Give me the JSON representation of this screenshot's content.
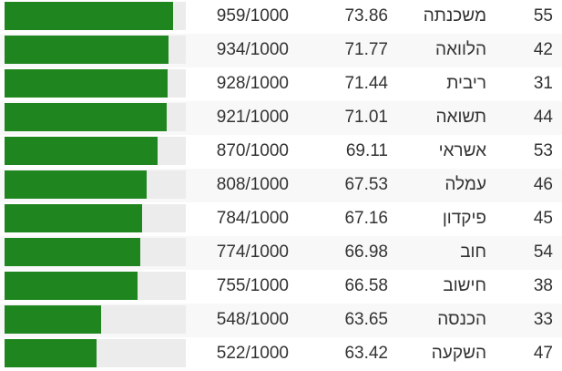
{
  "rows": [
    {
      "rank": "55",
      "word": "משכנתה",
      "value": "73.86",
      "score": "959/1000",
      "fill": 0.959
    },
    {
      "rank": "42",
      "word": "הלוואה",
      "value": "71.77",
      "score": "934/1000",
      "fill": 0.934
    },
    {
      "rank": "31",
      "word": "ריבית",
      "value": "71.44",
      "score": "928/1000",
      "fill": 0.928
    },
    {
      "rank": "44",
      "word": "תשואה",
      "value": "71.01",
      "score": "921/1000",
      "fill": 0.921
    },
    {
      "rank": "53",
      "word": "אשראי",
      "value": "69.11",
      "score": "870/1000",
      "fill": 0.87
    },
    {
      "rank": "46",
      "word": "עמלה",
      "value": "67.53",
      "score": "808/1000",
      "fill": 0.808
    },
    {
      "rank": "45",
      "word": "פיקדון",
      "value": "67.16",
      "score": "784/1000",
      "fill": 0.784
    },
    {
      "rank": "54",
      "word": "חוב",
      "value": "66.98",
      "score": "774/1000",
      "fill": 0.774
    },
    {
      "rank": "38",
      "word": "חישוב",
      "value": "66.58",
      "score": "755/1000",
      "fill": 0.755
    },
    {
      "rank": "33",
      "word": "הכנסה",
      "value": "63.65",
      "score": "548/1000",
      "fill": 0.548
    },
    {
      "rank": "47",
      "word": "השקעה",
      "value": "63.42",
      "score": "522/1000",
      "fill": 0.522
    }
  ],
  "colors": {
    "bar_fill": "#1f861f",
    "bar_track": "#ececec",
    "row_alt": "#f8f8f8",
    "text": "#333333"
  }
}
